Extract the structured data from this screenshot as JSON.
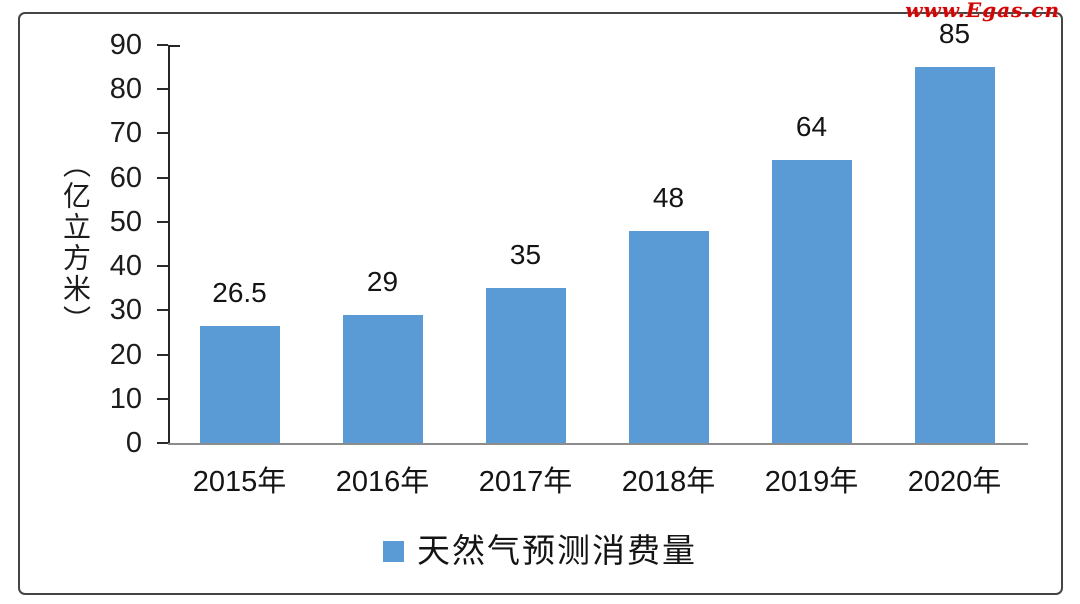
{
  "watermark": {
    "text": "www.Egas.cn",
    "color": "#d10505"
  },
  "chart_data": {
    "type": "bar",
    "title": "",
    "categories": [
      "2015年",
      "2016年",
      "2017年",
      "2018年",
      "2019年",
      "2020年"
    ],
    "values": [
      26.5,
      29,
      35,
      48,
      64,
      85
    ],
    "value_labels": [
      "26.5",
      "29",
      "35",
      "48",
      "64",
      "85"
    ],
    "xlabel": "",
    "ylabel": "（亿立方米）",
    "ylim": [
      0,
      90
    ],
    "yticks": [
      0,
      10,
      20,
      30,
      40,
      50,
      60,
      70,
      80,
      90
    ],
    "grid": false,
    "bar_color": "#5b9bd5",
    "axis_color": "#262626",
    "baseline_color": "#8c8c8c",
    "legend": {
      "label": "天然气预测消费量",
      "position": "bottom",
      "marker_color": "#5b9bd5"
    }
  }
}
